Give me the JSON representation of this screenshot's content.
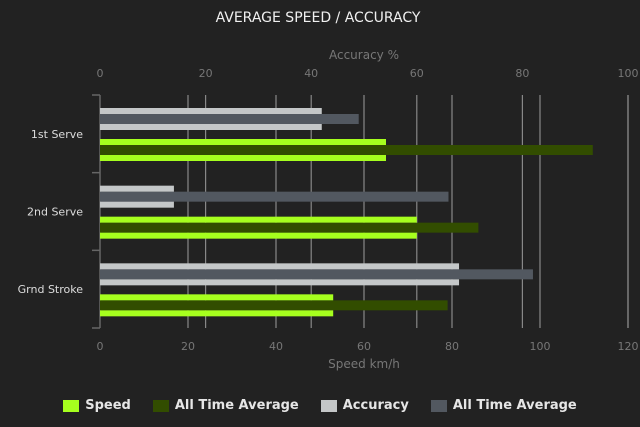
{
  "chart_data": {
    "type": "bar",
    "orientation": "horizontal",
    "title": "AVERAGE SPEED / ACCURACY",
    "categories": [
      "1st Serve",
      "2nd Serve",
      "Grnd Stroke"
    ],
    "top_axis": {
      "label": "Accuracy %",
      "range": [
        0,
        100
      ],
      "ticks": [
        0,
        20,
        40,
        60,
        80,
        100
      ]
    },
    "bottom_axis": {
      "label": "Speed km/h",
      "range": [
        0,
        120
      ],
      "ticks": [
        0,
        20,
        40,
        60,
        80,
        100,
        120
      ]
    },
    "grid": true,
    "legend_placement": "bottom",
    "series": [
      {
        "name": "Speed",
        "axis": "speed",
        "color": "#a6ff1e",
        "values": [
          65,
          72,
          53
        ]
      },
      {
        "name": "All Time Average",
        "axis": "speed",
        "color": "#324d00",
        "values": [
          112,
          86,
          79
        ]
      },
      {
        "name": "Accuracy",
        "axis": "accuracy",
        "color": "#c4c7c8",
        "values": [
          42,
          14,
          68
        ]
      },
      {
        "name": "All Time Average",
        "axis": "accuracy",
        "color": "#525860",
        "values": [
          49,
          66,
          82
        ]
      }
    ]
  }
}
